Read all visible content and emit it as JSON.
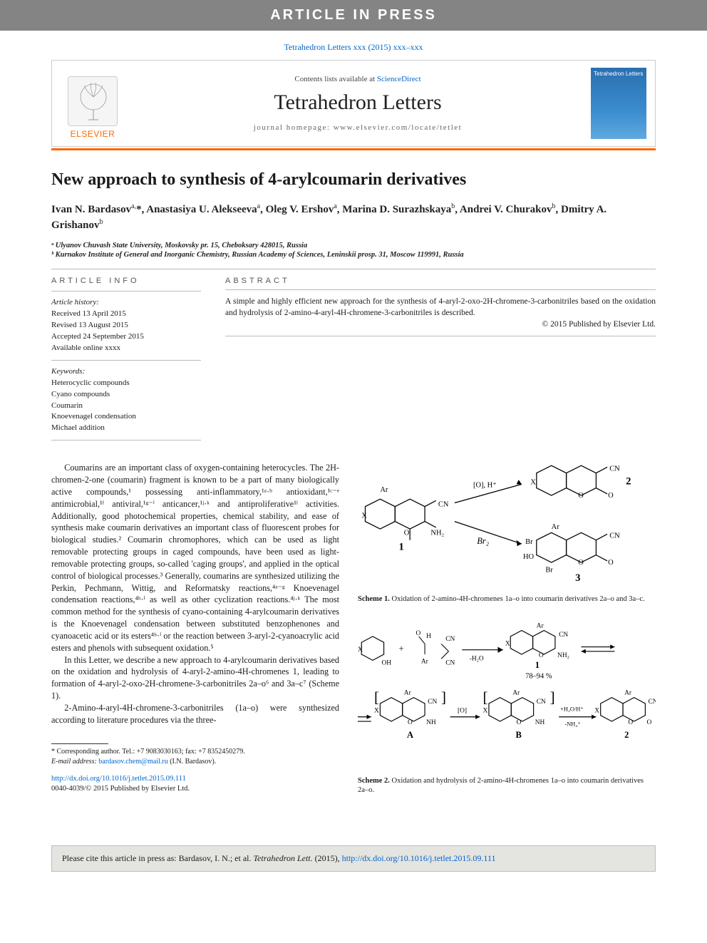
{
  "banner": "ARTICLE IN PRESS",
  "citation_header": "Tetrahedron Letters xxx (2015) xxx–xxx",
  "masthead": {
    "contents_prefix": "Contents lists available at ",
    "contents_link": "ScienceDirect",
    "journal": "Tetrahedron Letters",
    "homepage": "journal homepage: www.elsevier.com/locate/tetlet",
    "publisher_word": "ELSEVIER",
    "cover_text": "Tetrahedron Letters"
  },
  "title": "New approach to synthesis of 4-arylcoumarin derivatives",
  "authors_html": "Ivan N. Bardasov<sup>a,</sup><span class='star'>*</span>, Anastasiya U. Alekseeva<sup>a</sup>, Oleg V. Ershov<sup>a</sup>, Marina D. Surazhskaya<sup>b</sup>, Andrei V. Churakov<sup>b</sup>, Dmitry A. Grishanov<sup>b</sup>",
  "affiliations": [
    "ᵃ Ulyanov Chuvash State University, Moskovsky pr. 15, Cheboksary 428015, Russia",
    "ᵇ Kurnakov Institute of General and Inorganic Chemistry, Russian Academy of Sciences, Leninskii prosp. 31, Moscow 119991, Russia"
  ],
  "article_info": {
    "heading": "ARTICLE INFO",
    "history_label": "Article history:",
    "history": [
      "Received 13 April 2015",
      "Revised 13 August 2015",
      "Accepted 24 September 2015",
      "Available online xxxx"
    ],
    "keywords_label": "Keywords:",
    "keywords": [
      "Heterocyclic compounds",
      "Cyano compounds",
      "Coumarin",
      "Knoevenagel condensation",
      "Michael addition"
    ]
  },
  "abstract": {
    "heading": "ABSTRACT",
    "text": "A simple and highly efficient new approach for the synthesis of 4-aryl-2-oxo-2H-chromene-3-carbonitriles based on the oxidation and hydrolysis of 2-amino-4-aryl-4H-chromene-3-carbonitriles is described.",
    "copyright": "© 2015 Published by Elsevier Ltd."
  },
  "body": {
    "p1": "Coumarins are an important class of oxygen-containing heterocycles. The 2H-chromen-2-one (coumarin) fragment is known to be a part of many biologically active compounds,¹ possessing anti-inflammatory,¹ᵃ·ᵇ antioxidant,¹ᶜ⁻ᵉ antimicrobial,¹ᶠ antiviral,¹ᵍ⁻ⁱ anticancer,¹ʲ·ᵏ and antiproliferative¹ˡ activities. Additionally, good photochemical properties, chemical stability, and ease of synthesis make coumarin derivatives an important class of fluorescent probes for biological studies.² Coumarin chromophores, which can be used as light removable protecting groups in caged compounds, have been used as light-removable protecting groups, so-called 'caging groups', and applied in the optical control of biological processes.³ Generally, coumarins are synthesized utilizing the Perkin, Pechmann, Wittig, and Reformatsky reactions,⁴ᵃ⁻ᵍ Knoevenagel condensation reactions,⁴ʰ·ⁱ as well as other cyclization reactions.⁴ʲ·ᵏ The most common method for the synthesis of cyano-containing 4-arylcoumarin derivatives is the Knoevenagel condensation between substituted benzophenones and cyanoacetic acid or its esters⁴ʰ·ⁱ or the reaction between 3-aryl-2-cyanoacrylic acid esters and phenols with subsequent oxidation.⁵",
    "p2": "In this Letter, we describe a new approach to 4-arylcoumarin derivatives based on the oxidation and hydrolysis of 4-aryl-2-amino-4H-chromenes 1, leading to formation of 4-aryl-2-oxo-2H-chromene-3-carbonitriles 2a–o⁶ and 3a–c⁷ (Scheme 1).",
    "p3": "2-Amino-4-aryl-4H-chromene-3-carbonitriles (1a–o) were synthesized according to literature procedures via the three-"
  },
  "scheme1": {
    "caption_prefix": "Scheme 1.",
    "caption": " Oxidation of 2-amino-4H-chromenes 1a–o into coumarin derivatives 2a–o and 3a–c.",
    "labels": {
      "compound1": "1",
      "compound2": "2",
      "compound3": "3",
      "X": "X",
      "Ar": "Ar",
      "CN": "CN",
      "NH2": "NH₂",
      "arrow_top": "[O], H⁺",
      "arrow_bot": "Br₂",
      "Br": "Br",
      "HO": "HO",
      "O": "O"
    }
  },
  "scheme2": {
    "caption_prefix": "Scheme 2.",
    "caption": " Oxidation and hydrolysis of 2-amino-4H-chromenes 1a–o into coumarin derivatives 2a–o.",
    "labels": {
      "CHO_Ar": "Ar",
      "CHO_H": "H",
      "CN": "CN",
      "H2O": "-H₂O",
      "NH2": "NH₂",
      "NH": "NH",
      "yield": "78–94 %",
      "compound1": "1",
      "A": "A",
      "B": "B",
      "compound2": "2",
      "O_bracket": "[O]",
      "plusH2O": "+H₂O/H⁺",
      "minusNH4": "-NH₄⁺",
      "X": "X",
      "OH": "OH",
      "O": "O",
      "Ar": "Ar"
    }
  },
  "footnote": {
    "corresponding": "* Corresponding author. Tel.: +7 9083030163; fax: +7 8352450279.",
    "email_label": "E-mail address: ",
    "email": "bardasov.chem@mail.ru",
    "email_suffix": " (I.N. Bardasov)."
  },
  "doi": "http://dx.doi.org/10.1016/j.tetlet.2015.09.111",
  "issn_line": "0040-4039/© 2015 Published by Elsevier Ltd.",
  "cite_box": {
    "prefix": "Please cite this article in press as: Bardasov, I. N.; et al. ",
    "journal": "Tetrahedron Lett.",
    "year": " (2015), ",
    "link": "http://dx.doi.org/10.1016/j.tetlet.2015.09.111"
  },
  "colors": {
    "banner_bg": "#848484",
    "link": "#0066cc",
    "orange": "#ff6600",
    "gray_box": "#e4e4e0"
  }
}
